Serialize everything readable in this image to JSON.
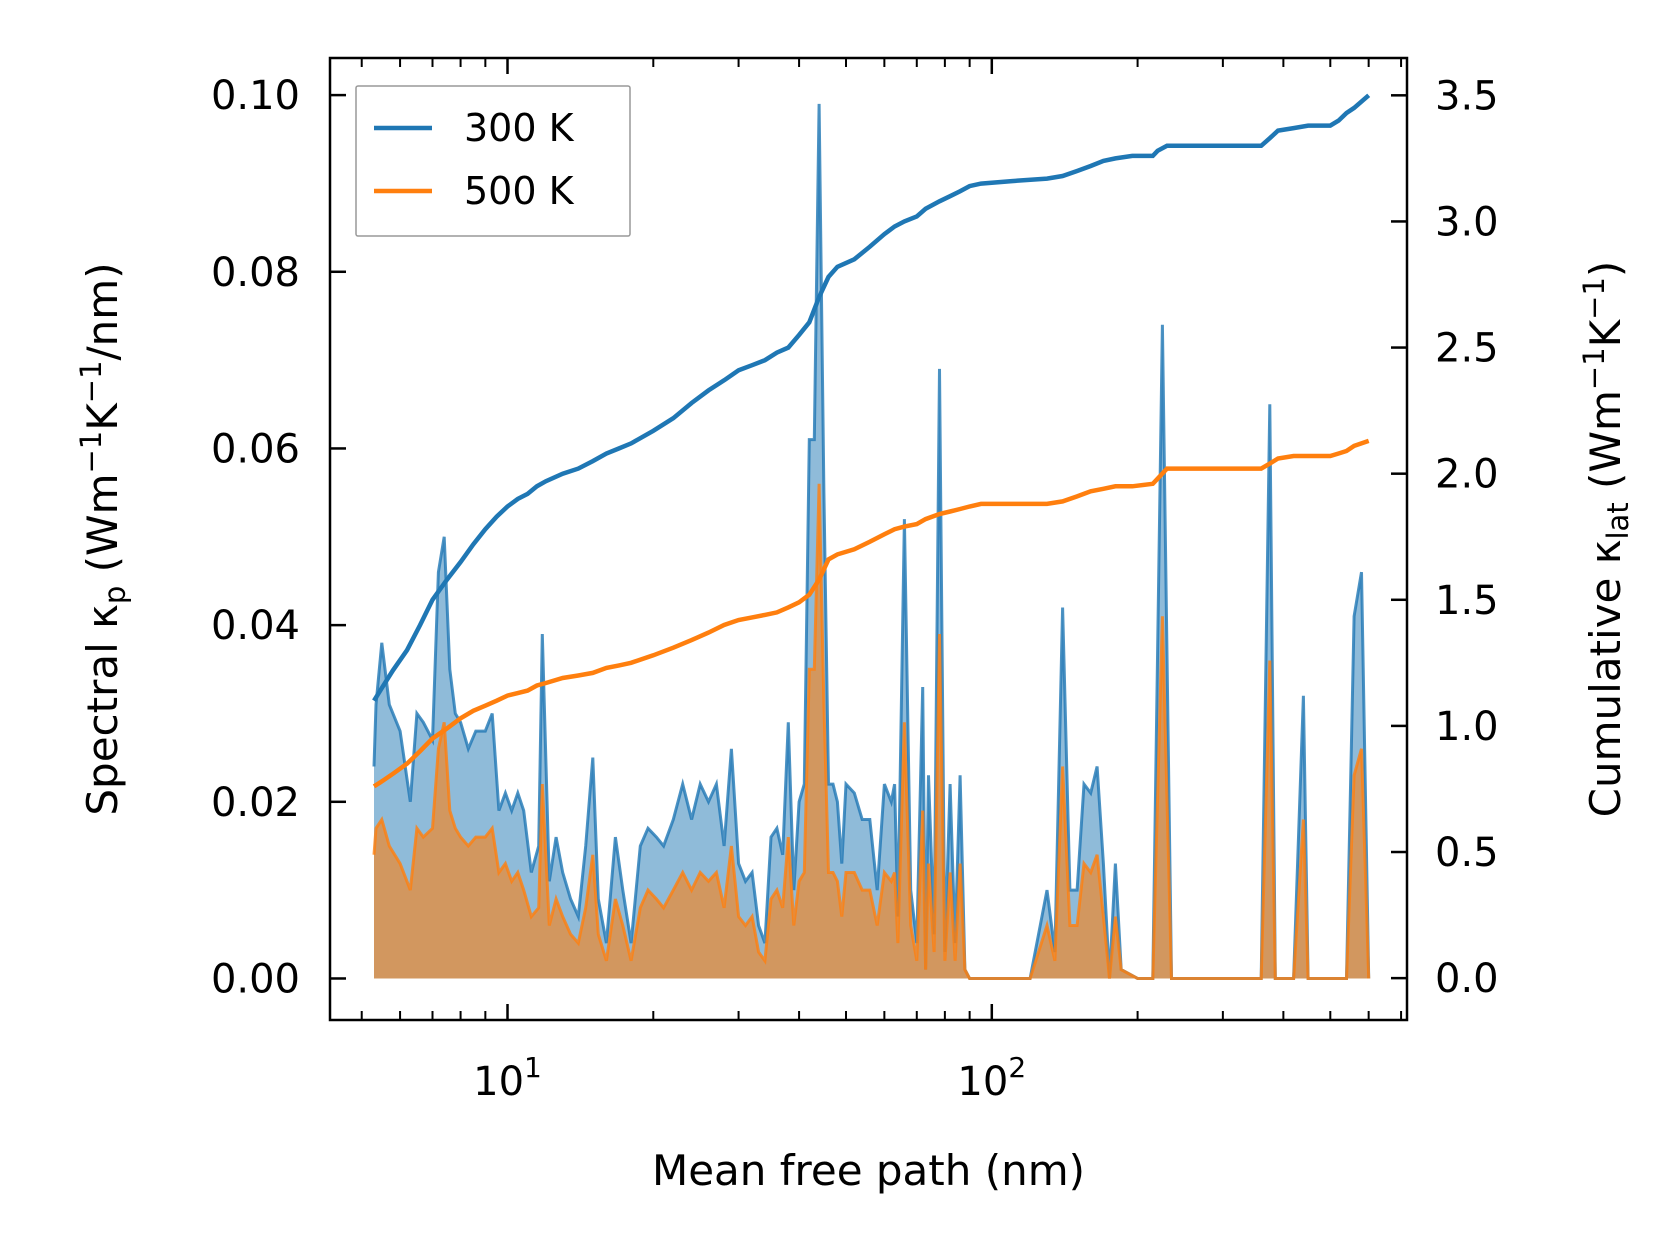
{
  "chart_data": {
    "type": "line",
    "xscale": "log",
    "xlabel": "Mean free path (nm)",
    "ylabel_left_prefix": "Spectral κ",
    "ylabel_left_sub": "p",
    "ylabel_left_unit_a": " (Wm",
    "ylabel_left_sup1": "−1",
    "ylabel_left_unit_b": "K",
    "ylabel_left_sup2": "−1",
    "ylabel_left_unit_c": "/nm)",
    "ylabel_right_prefix": "Cumulative κ",
    "ylabel_right_sub": "lat",
    "ylabel_right_unit_a": " (Wm",
    "ylabel_right_sup1": "−1",
    "ylabel_right_unit_b": "K",
    "ylabel_right_sup2": "−1",
    "ylabel_right_unit_c": ")",
    "xlim": [
      4.3,
      720
    ],
    "ylim_left": [
      -0.0047,
      0.1042
    ],
    "ylim_right": [
      -0.166,
      3.648
    ],
    "x_ticks": [
      {
        "value": 10,
        "base": "10",
        "exp": "1"
      },
      {
        "value": 100,
        "base": "10",
        "exp": "2"
      }
    ],
    "y_left_ticks": [
      "0.00",
      "0.02",
      "0.04",
      "0.06",
      "0.08",
      "0.10"
    ],
    "y_right_ticks": [
      "0.0",
      "0.5",
      "1.0",
      "1.5",
      "2.0",
      "2.5",
      "3.0",
      "3.5"
    ],
    "legend": [
      {
        "label": "300 K",
        "color": "#1f77b4"
      },
      {
        "label": "500 K",
        "color": "#ff7f0e"
      }
    ],
    "series": [
      {
        "name": "300 K spectral",
        "axis": "left",
        "style": "fill",
        "color": "#1f77b4",
        "x": [
          5.3,
          5.35,
          5.5,
          5.7,
          6.0,
          6.3,
          6.5,
          6.7,
          7.0,
          7.2,
          7.4,
          7.6,
          7.8,
          8.0,
          8.3,
          8.6,
          9.0,
          9.3,
          9.6,
          9.9,
          10.2,
          10.5,
          10.8,
          11.2,
          11.6,
          11.8,
          12.2,
          12.6,
          13.0,
          13.5,
          14.0,
          14.5,
          15.0,
          15.4,
          16.0,
          16.7,
          17.3,
          18.0,
          18.8,
          19.5,
          20.3,
          21.0,
          22.0,
          23.0,
          24.0,
          25.0,
          26.0,
          27.0,
          28.0,
          29.0,
          30.0,
          31.0,
          32.0,
          33.0,
          34.0,
          35.0,
          36.0,
          37.0,
          38.0,
          39.0,
          40.0,
          41.0,
          42.0,
          43.0,
          44.0,
          45.0,
          46.0,
          47.0,
          48.0,
          49.0,
          50.0,
          52.0,
          54.0,
          56.0,
          58.0,
          60.0,
          62.0,
          63.0,
          64.0,
          66.0,
          68.0,
          70.0,
          72.0,
          73.0,
          74.0,
          76.0,
          78.0,
          80.0,
          82.0,
          84.0,
          86.0,
          88.0,
          90.0,
          92.0,
          94.0,
          100.0,
          120.0,
          130.0,
          135.0,
          140.0,
          145.0,
          150.0,
          155.0,
          160.0,
          165.0,
          170.0,
          175.0,
          180.0,
          185.0,
          200.0,
          215.0,
          225.0,
          235.0,
          245.0,
          300.0,
          360.0,
          375.0,
          385.0,
          395.0,
          420.0,
          440.0,
          450.0,
          460.0,
          500.0,
          540.0,
          560.0,
          580.0,
          600.0
        ],
        "values": [
          0.024,
          0.031,
          0.038,
          0.031,
          0.028,
          0.02,
          0.03,
          0.029,
          0.027,
          0.046,
          0.05,
          0.035,
          0.03,
          0.029,
          0.026,
          0.028,
          0.028,
          0.03,
          0.019,
          0.021,
          0.019,
          0.021,
          0.019,
          0.012,
          0.015,
          0.039,
          0.011,
          0.016,
          0.012,
          0.009,
          0.007,
          0.015,
          0.025,
          0.009,
          0.004,
          0.016,
          0.01,
          0.004,
          0.015,
          0.017,
          0.016,
          0.015,
          0.018,
          0.022,
          0.018,
          0.022,
          0.02,
          0.022,
          0.015,
          0.026,
          0.013,
          0.011,
          0.012,
          0.006,
          0.004,
          0.016,
          0.017,
          0.014,
          0.029,
          0.01,
          0.02,
          0.022,
          0.061,
          0.061,
          0.099,
          0.055,
          0.022,
          0.022,
          0.02,
          0.013,
          0.022,
          0.021,
          0.018,
          0.018,
          0.01,
          0.022,
          0.02,
          0.022,
          0.007,
          0.052,
          0.01,
          0.004,
          0.033,
          0.001,
          0.023,
          0.005,
          0.069,
          0.003,
          0.022,
          0.004,
          0.023,
          0.001,
          0.0,
          0.0,
          0.0,
          0.0,
          0.0,
          0.01,
          0.003,
          0.042,
          0.01,
          0.01,
          0.022,
          0.021,
          0.024,
          0.013,
          0.0,
          0.013,
          0.001,
          0.0,
          0.0,
          0.074,
          0.0,
          0.0,
          0.0,
          0.0,
          0.065,
          0.0,
          0.0,
          0.0,
          0.032,
          0.0,
          0.0,
          0.0,
          0.0,
          0.041,
          0.046,
          0.0
        ]
      },
      {
        "name": "500 K spectral",
        "axis": "left",
        "style": "fill",
        "color": "#ff7f0e",
        "x": [
          5.3,
          5.35,
          5.5,
          5.7,
          6.0,
          6.3,
          6.5,
          6.7,
          7.0,
          7.2,
          7.4,
          7.6,
          7.8,
          8.0,
          8.3,
          8.6,
          9.0,
          9.3,
          9.6,
          9.9,
          10.2,
          10.5,
          10.8,
          11.2,
          11.6,
          11.8,
          12.2,
          12.6,
          13.0,
          13.5,
          14.0,
          14.5,
          15.0,
          15.4,
          16.0,
          16.7,
          17.3,
          18.0,
          18.8,
          19.5,
          20.3,
          21.0,
          22.0,
          23.0,
          24.0,
          25.0,
          26.0,
          27.0,
          28.0,
          29.0,
          30.0,
          31.0,
          32.0,
          33.0,
          34.0,
          35.0,
          36.0,
          37.0,
          38.0,
          39.0,
          40.0,
          41.0,
          42.0,
          43.0,
          44.0,
          45.0,
          46.0,
          47.0,
          48.0,
          49.0,
          50.0,
          52.0,
          54.0,
          56.0,
          58.0,
          60.0,
          62.0,
          63.0,
          64.0,
          66.0,
          68.0,
          70.0,
          72.0,
          73.0,
          74.0,
          76.0,
          78.0,
          80.0,
          82.0,
          84.0,
          86.0,
          88.0,
          90.0,
          92.0,
          94.0,
          100.0,
          120.0,
          130.0,
          135.0,
          140.0,
          145.0,
          150.0,
          155.0,
          160.0,
          165.0,
          170.0,
          175.0,
          180.0,
          185.0,
          200.0,
          215.0,
          225.0,
          235.0,
          245.0,
          300.0,
          360.0,
          375.0,
          385.0,
          395.0,
          420.0,
          440.0,
          450.0,
          460.0,
          500.0,
          540.0,
          560.0,
          580.0,
          600.0
        ],
        "values": [
          0.014,
          0.017,
          0.018,
          0.015,
          0.013,
          0.01,
          0.017,
          0.016,
          0.017,
          0.026,
          0.029,
          0.019,
          0.017,
          0.016,
          0.015,
          0.016,
          0.016,
          0.017,
          0.012,
          0.013,
          0.011,
          0.012,
          0.01,
          0.007,
          0.008,
          0.022,
          0.006,
          0.009,
          0.007,
          0.005,
          0.004,
          0.008,
          0.014,
          0.005,
          0.002,
          0.009,
          0.006,
          0.002,
          0.008,
          0.01,
          0.009,
          0.008,
          0.01,
          0.012,
          0.01,
          0.012,
          0.011,
          0.012,
          0.008,
          0.015,
          0.007,
          0.006,
          0.007,
          0.003,
          0.002,
          0.009,
          0.01,
          0.008,
          0.016,
          0.006,
          0.011,
          0.012,
          0.035,
          0.035,
          0.056,
          0.031,
          0.012,
          0.012,
          0.011,
          0.007,
          0.012,
          0.012,
          0.01,
          0.01,
          0.006,
          0.012,
          0.011,
          0.012,
          0.004,
          0.029,
          0.006,
          0.002,
          0.019,
          0.001,
          0.013,
          0.003,
          0.039,
          0.002,
          0.012,
          0.002,
          0.013,
          0.001,
          0.0,
          0.0,
          0.0,
          0.0,
          0.0,
          0.006,
          0.002,
          0.024,
          0.006,
          0.006,
          0.013,
          0.012,
          0.014,
          0.007,
          0.0,
          0.007,
          0.001,
          0.0,
          0.0,
          0.041,
          0.0,
          0.0,
          0.0,
          0.0,
          0.036,
          0.0,
          0.0,
          0.0,
          0.018,
          0.0,
          0.0,
          0.0,
          0.0,
          0.023,
          0.026,
          0.0
        ]
      },
      {
        "name": "300 K",
        "axis": "right",
        "style": "line",
        "color": "#1f77b4",
        "x": [
          5.3,
          5.5,
          5.8,
          6.2,
          6.6,
          7.0,
          7.5,
          8.0,
          8.5,
          9.0,
          9.5,
          10.0,
          10.5,
          11.0,
          11.5,
          12.0,
          13.0,
          14.0,
          15.0,
          16.0,
          17.0,
          18.0,
          20.0,
          22.0,
          24.0,
          26.0,
          28.0,
          30.0,
          32.0,
          34.0,
          36.0,
          38.0,
          40.0,
          42.0,
          44.0,
          46.0,
          48.0,
          52.0,
          56.0,
          60.0,
          63.0,
          66.0,
          70.0,
          73.0,
          78.0,
          82.0,
          86.0,
          90.0,
          95.0,
          110.0,
          130.0,
          140.0,
          150.0,
          160.0,
          170.0,
          180.0,
          195.0,
          215.0,
          220.0,
          230.0,
          260.0,
          300.0,
          360.0,
          375.0,
          390.0,
          420.0,
          450.0,
          500.0,
          520.0,
          540.0,
          560.0,
          600.0
        ],
        "values": [
          1.1,
          1.15,
          1.22,
          1.3,
          1.4,
          1.5,
          1.58,
          1.65,
          1.72,
          1.78,
          1.83,
          1.87,
          1.9,
          1.92,
          1.95,
          1.97,
          2.0,
          2.02,
          2.05,
          2.08,
          2.1,
          2.12,
          2.17,
          2.22,
          2.28,
          2.33,
          2.37,
          2.41,
          2.43,
          2.45,
          2.48,
          2.5,
          2.55,
          2.6,
          2.7,
          2.78,
          2.82,
          2.85,
          2.9,
          2.95,
          2.98,
          3.0,
          3.02,
          3.05,
          3.08,
          3.1,
          3.12,
          3.14,
          3.15,
          3.16,
          3.17,
          3.18,
          3.2,
          3.22,
          3.24,
          3.25,
          3.26,
          3.26,
          3.28,
          3.3,
          3.3,
          3.3,
          3.3,
          3.33,
          3.36,
          3.37,
          3.38,
          3.38,
          3.4,
          3.43,
          3.45,
          3.5
        ]
      },
      {
        "name": "500 K",
        "axis": "right",
        "style": "line",
        "color": "#ff7f0e",
        "x": [
          5.3,
          5.5,
          5.8,
          6.2,
          6.6,
          7.0,
          7.5,
          8.0,
          8.5,
          9.0,
          9.5,
          10.0,
          10.5,
          11.0,
          11.5,
          12.0,
          13.0,
          14.0,
          15.0,
          16.0,
          17.0,
          18.0,
          20.0,
          22.0,
          24.0,
          26.0,
          28.0,
          30.0,
          32.0,
          34.0,
          36.0,
          38.0,
          40.0,
          42.0,
          44.0,
          46.0,
          48.0,
          52.0,
          56.0,
          60.0,
          63.0,
          66.0,
          70.0,
          73.0,
          78.0,
          82.0,
          86.0,
          90.0,
          95.0,
          110.0,
          130.0,
          140.0,
          150.0,
          160.0,
          170.0,
          180.0,
          195.0,
          215.0,
          220.0,
          230.0,
          260.0,
          300.0,
          360.0,
          375.0,
          390.0,
          420.0,
          450.0,
          500.0,
          520.0,
          540.0,
          560.0,
          600.0
        ],
        "values": [
          0.76,
          0.78,
          0.81,
          0.85,
          0.9,
          0.95,
          0.99,
          1.03,
          1.06,
          1.08,
          1.1,
          1.12,
          1.13,
          1.14,
          1.16,
          1.17,
          1.19,
          1.2,
          1.21,
          1.23,
          1.24,
          1.25,
          1.28,
          1.31,
          1.34,
          1.37,
          1.4,
          1.42,
          1.43,
          1.44,
          1.45,
          1.47,
          1.49,
          1.52,
          1.58,
          1.66,
          1.68,
          1.7,
          1.73,
          1.76,
          1.78,
          1.79,
          1.8,
          1.82,
          1.84,
          1.85,
          1.86,
          1.87,
          1.88,
          1.88,
          1.88,
          1.89,
          1.91,
          1.93,
          1.94,
          1.95,
          1.95,
          1.96,
          1.98,
          2.02,
          2.02,
          2.02,
          2.02,
          2.04,
          2.06,
          2.07,
          2.07,
          2.07,
          2.08,
          2.09,
          2.11,
          2.13
        ]
      }
    ]
  }
}
